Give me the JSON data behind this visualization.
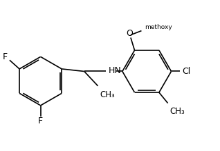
{
  "bg_color": "#ffffff",
  "line_color": "#000000",
  "dbo": 0.038,
  "shrink": 0.065,
  "fs": 9.0,
  "lw": 1.2,
  "r": 0.5,
  "figsize": [
    3.18,
    2.19
  ],
  "dpi": 100,
  "xlim": [
    0.05,
    4.55
  ],
  "ylim": [
    0.18,
    2.95
  ]
}
